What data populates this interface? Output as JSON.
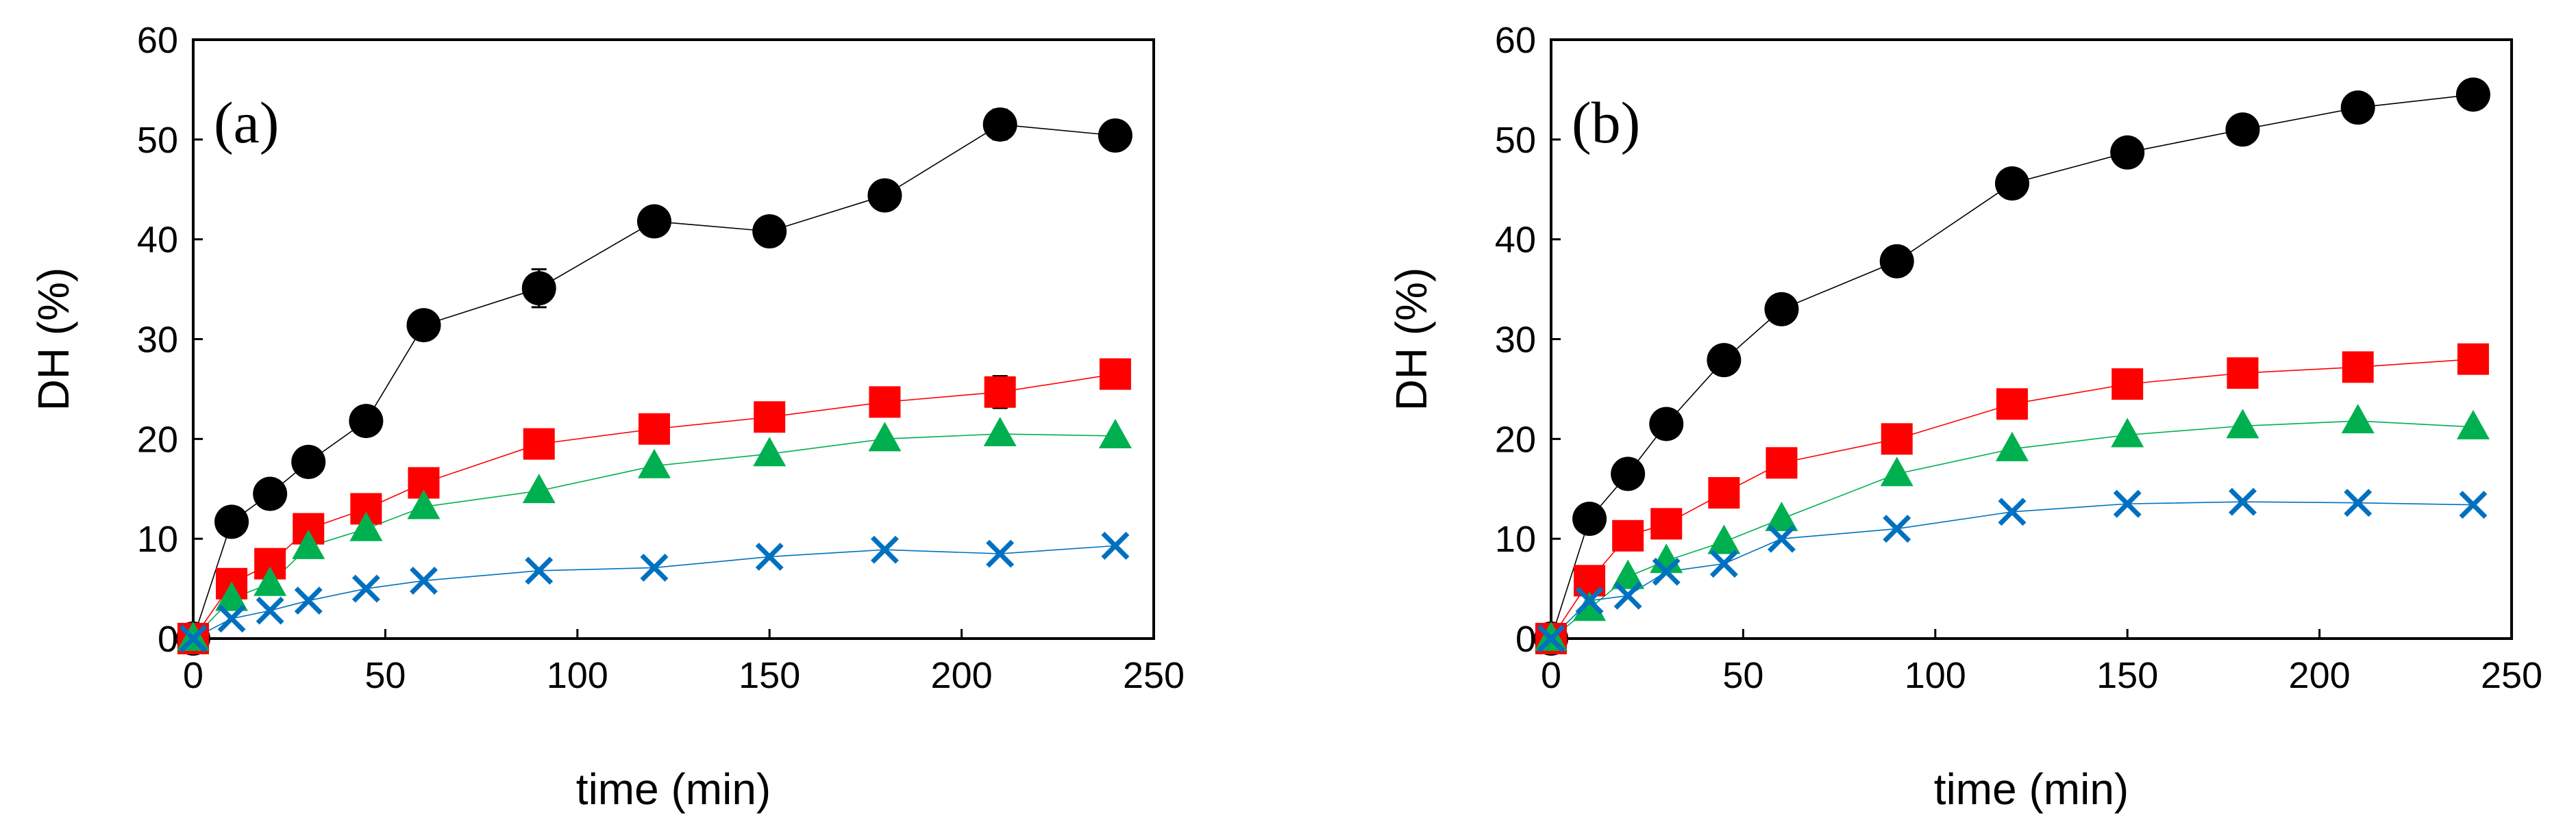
{
  "chart_data": [
    {
      "type": "scatter",
      "panel_label": "(a)",
      "xlabel": "time (min)",
      "ylabel": "DH (%)",
      "xlim": [
        0,
        250
      ],
      "ylim": [
        0,
        60
      ],
      "xticks": [
        "0",
        "50",
        "100",
        "150",
        "200",
        "250"
      ],
      "yticks": [
        "0",
        "10",
        "20",
        "30",
        "40",
        "50",
        "60"
      ],
      "x": [
        0,
        10,
        20,
        30,
        45,
        60,
        90,
        120,
        150,
        180,
        210,
        240
      ],
      "series": [
        {
          "name": "black circles",
          "marker": "circle",
          "color": "#000000",
          "values": [
            0,
            11.7,
            14.5,
            17.7,
            21.8,
            31.4,
            35.1,
            41.8,
            40.8,
            44.4,
            51.5,
            50.4
          ],
          "errors": [
            0,
            0,
            0,
            1.3,
            0,
            0,
            1.9,
            0,
            0,
            0,
            1.5,
            0
          ]
        },
        {
          "name": "red squares",
          "marker": "square",
          "color": "#ff0000",
          "values": [
            0,
            5.5,
            7.5,
            11.0,
            13.0,
            15.6,
            19.5,
            21.0,
            22.2,
            23.7,
            24.7,
            26.5
          ],
          "errors": [
            0,
            0,
            0,
            0,
            0,
            0,
            0,
            0,
            0,
            0,
            1.6,
            0
          ]
        },
        {
          "name": "green triangles",
          "marker": "triangle",
          "color": "#00b050",
          "values": [
            0,
            4.0,
            5.5,
            9.2,
            11.0,
            13.2,
            14.8,
            17.3,
            18.5,
            20.0,
            20.5,
            20.3
          ],
          "errors": [
            0,
            0,
            0,
            0,
            0,
            0,
            0,
            0,
            0,
            0,
            0,
            0
          ]
        },
        {
          "name": "blue crosses",
          "marker": "x",
          "color": "#0070c0",
          "values": [
            0,
            2.0,
            2.8,
            3.8,
            5.0,
            5.8,
            6.8,
            7.1,
            8.2,
            8.9,
            8.5,
            9.3
          ],
          "errors": [
            0,
            0,
            0,
            0,
            0,
            0,
            0,
            0,
            0,
            0,
            0,
            0
          ]
        }
      ]
    },
    {
      "type": "scatter",
      "panel_label": "(b)",
      "xlabel": "time (min)",
      "ylabel": "DH (%)",
      "xlim": [
        0,
        250
      ],
      "ylim": [
        0,
        60
      ],
      "xticks": [
        "0",
        "50",
        "100",
        "150",
        "200",
        "250"
      ],
      "yticks": [
        "0",
        "10",
        "20",
        "30",
        "40",
        "50",
        "60"
      ],
      "x": [
        0,
        10,
        20,
        30,
        45,
        60,
        90,
        120,
        150,
        180,
        210,
        240
      ],
      "series": [
        {
          "name": "black circles",
          "marker": "circle",
          "color": "#000000",
          "values": [
            0,
            12.0,
            16.5,
            21.5,
            27.9,
            33.0,
            37.8,
            45.6,
            48.7,
            51.0,
            53.2,
            54.5
          ],
          "errors": [
            0,
            0,
            0,
            0,
            0,
            0,
            0,
            0,
            0,
            0,
            0,
            0
          ]
        },
        {
          "name": "red squares",
          "marker": "square",
          "color": "#ff0000",
          "values": [
            0,
            5.8,
            10.3,
            11.5,
            14.6,
            17.6,
            20.0,
            23.5,
            25.5,
            26.6,
            27.2,
            28.0
          ],
          "errors": [
            0,
            0,
            0,
            0,
            0,
            0,
            0,
            0,
            0,
            0,
            0,
            0
          ]
        },
        {
          "name": "green triangles",
          "marker": "triangle",
          "color": "#00b050",
          "values": [
            0,
            3.0,
            6.2,
            7.8,
            9.7,
            12.0,
            16.5,
            19.0,
            20.4,
            21.3,
            21.8,
            21.2
          ],
          "errors": [
            0,
            0,
            0,
            0,
            0,
            0,
            0,
            0,
            0,
            0,
            0,
            0
          ]
        },
        {
          "name": "blue crosses",
          "marker": "x",
          "color": "#0070c0",
          "values": [
            0,
            3.8,
            4.3,
            6.7,
            7.5,
            10.0,
            11.0,
            12.7,
            13.5,
            13.7,
            13.6,
            13.4
          ],
          "errors": [
            0,
            0,
            0,
            0,
            0,
            0,
            0,
            0,
            0,
            0,
            0,
            0
          ]
        }
      ]
    }
  ]
}
